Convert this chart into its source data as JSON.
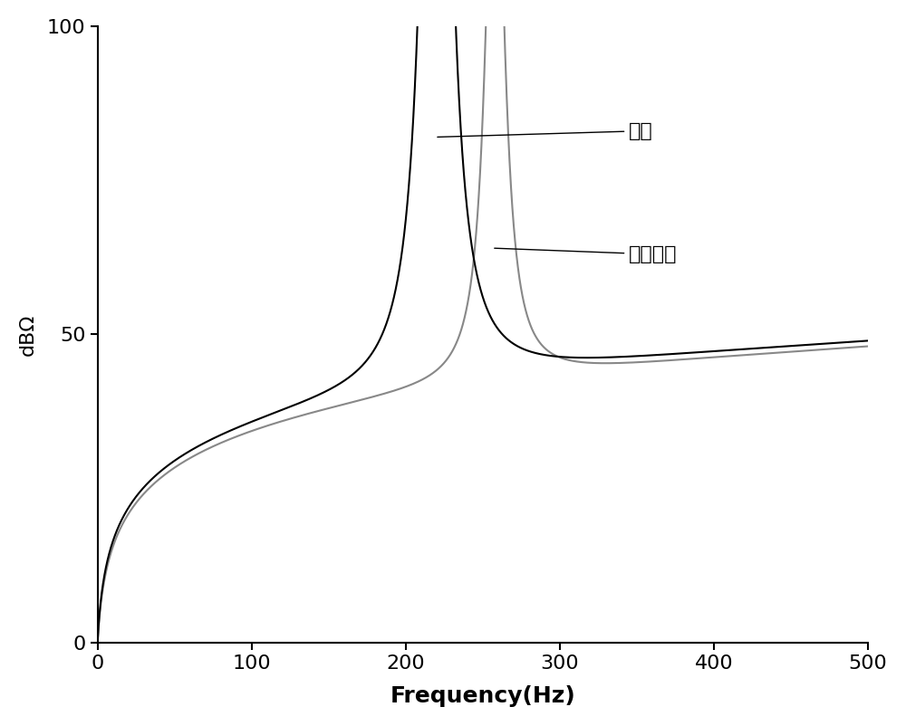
{
  "title": "",
  "xlabel": "Frequency(Hz)",
  "ylabel": "dBΩ",
  "xlim": [
    0,
    500
  ],
  "ylim": [
    0,
    100
  ],
  "xticks": [
    0,
    100,
    200,
    300,
    400,
    500
  ],
  "yticks": [
    0,
    50,
    100
  ],
  "background_color": "#ffffff",
  "line_normal_color": "#000000",
  "line_fault_color": "#888888",
  "label_normal": "正常",
  "label_fault": "下端短路",
  "xlabel_fontsize": 18,
  "ylabel_fontsize": 16,
  "tick_fontsize": 16,
  "label_fontsize": 16,
  "line_width": 1.5
}
